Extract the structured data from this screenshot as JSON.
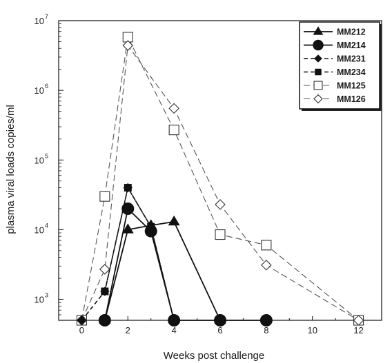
{
  "chart_data": {
    "type": "line",
    "title": "",
    "xlabel": "Weeks post challenge",
    "ylabel": "plasma viral loads copies/ml",
    "xlim": [
      -1,
      13
    ],
    "ylim": [
      500,
      10000000
    ],
    "yscale": "log",
    "x_ticks": [
      0,
      2,
      4,
      6,
      8,
      10,
      12
    ],
    "x_tick_labels": [
      "0",
      "2",
      "4",
      "6",
      "8",
      "10",
      "12"
    ],
    "y_ticks": [
      1000,
      10000,
      100000,
      1000000,
      10000000
    ],
    "y_tick_labels": [
      {
        "base": "10",
        "exp": "3"
      },
      {
        "base": "10",
        "exp": "4"
      },
      {
        "base": "10",
        "exp": "5"
      },
      {
        "base": "10",
        "exp": "6"
      },
      {
        "base": "10",
        "exp": "7"
      }
    ],
    "grid": false,
    "legend_position": "top-right",
    "series": [
      {
        "name": "MM212",
        "marker": "triangle-filled",
        "line": "solid",
        "points": [
          [
            1,
            500
          ],
          [
            2,
            10000
          ],
          [
            3,
            11500
          ],
          [
            4,
            13000
          ],
          [
            6,
            500
          ]
        ]
      },
      {
        "name": "MM214",
        "marker": "circle-filled",
        "line": "solid",
        "points": [
          [
            1,
            500
          ],
          [
            2,
            20000
          ],
          [
            3,
            9500
          ],
          [
            4,
            500
          ],
          [
            6,
            500
          ],
          [
            8,
            500
          ]
        ]
      },
      {
        "name": "MM231",
        "marker": "diamond-filled",
        "line": "dashed",
        "points": [
          [
            0,
            500
          ],
          [
            1,
            1300
          ],
          [
            2,
            40000
          ],
          [
            3,
            11000
          ],
          [
            4,
            500
          ]
        ]
      },
      {
        "name": "MM234",
        "marker": "square-filled",
        "line": "dashed",
        "points": [
          [
            1,
            1300
          ],
          [
            2,
            40000
          ],
          [
            3,
            11000
          ],
          [
            4,
            500
          ]
        ]
      },
      {
        "name": "MM125",
        "marker": "square-open",
        "line": "dashed",
        "points": [
          [
            0,
            500
          ],
          [
            1,
            30000
          ],
          [
            2,
            5800000
          ],
          [
            4,
            270000
          ],
          [
            6,
            8500
          ],
          [
            8,
            6000
          ],
          [
            12,
            500
          ]
        ]
      },
      {
        "name": "MM126",
        "marker": "diamond-open",
        "line": "dashed",
        "points": [
          [
            0,
            500
          ],
          [
            1,
            2700
          ],
          [
            2,
            4400000
          ],
          [
            4,
            550000
          ],
          [
            6,
            23000
          ],
          [
            8,
            3100
          ],
          [
            12,
            500
          ]
        ]
      }
    ]
  }
}
